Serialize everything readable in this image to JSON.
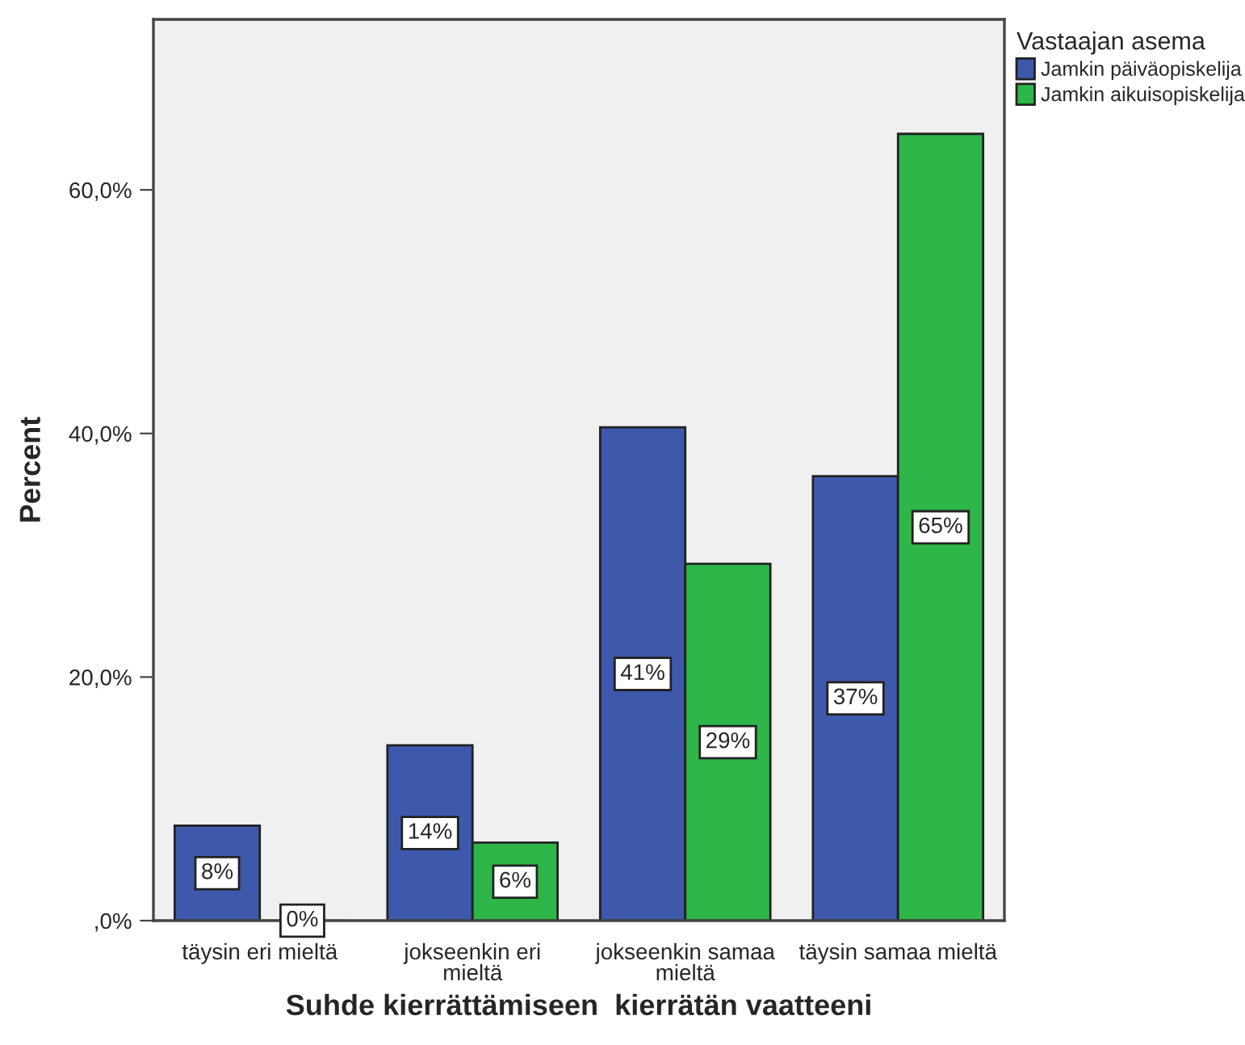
{
  "chart_data": {
    "type": "bar",
    "xlabel": "Suhde kierrättämiseen  kierrätän vaatteeni",
    "ylabel": "Percent",
    "legend_title": "Vastaajan asema",
    "categories": [
      "täysin eri mieltä",
      "jokseenkin eri\nmieltä",
      "jokseenkin samaa\nmieltä",
      "täysin samaa mieltä"
    ],
    "series": [
      {
        "name": "Jamkin päiväopiskelija",
        "color": "#3e58ac",
        "values": [
          7.8,
          14.4,
          40.5,
          36.5
        ],
        "value_labels": [
          "8%",
          "14%",
          "41%",
          "37%"
        ]
      },
      {
        "name": "Jamkin aikuisopiskelija",
        "color": "#2eb648",
        "values": [
          0,
          6.4,
          29.3,
          64.6
        ],
        "value_labels": [
          "0%",
          "6%",
          "29%",
          "65%"
        ]
      }
    ],
    "ylim": [
      0,
      74
    ],
    "yticks": [
      {
        "value": 0,
        "label": ",0%"
      },
      {
        "value": 20,
        "label": "20,0%"
      },
      {
        "value": 40,
        "label": "40,0%"
      },
      {
        "value": 60,
        "label": "60,0%"
      }
    ],
    "grid": false,
    "legend": "top right"
  }
}
